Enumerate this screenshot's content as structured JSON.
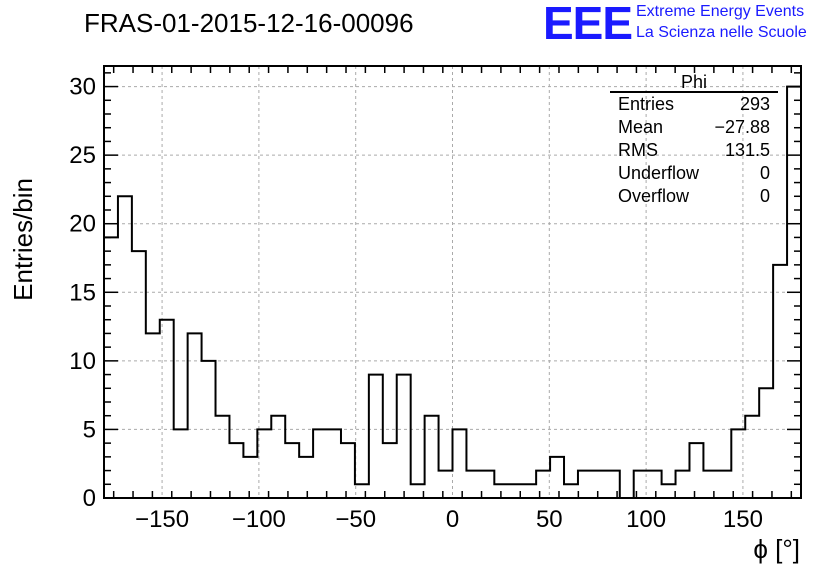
{
  "header": {
    "run_id": "FRAS-01-2015-12-16-00096",
    "logo": "EEE",
    "logo_line1": "Extreme Energy Events",
    "logo_line2": "La Scienza nelle Scuole"
  },
  "stats_box": {
    "title": "Phi",
    "rows": [
      {
        "label": "Entries",
        "value": "293"
      },
      {
        "label": "Mean",
        "value": "−27.88"
      },
      {
        "label": "RMS",
        "value": "131.5"
      },
      {
        "label": "Underflow",
        "value": "0"
      },
      {
        "label": "Overflow",
        "value": "0"
      }
    ]
  },
  "chart_data": {
    "type": "bar",
    "subtype": "histogram",
    "xlabel": "ϕ [°]",
    "ylabel": "Entries/bin",
    "xlim": [
      -180,
      180
    ],
    "ylim": [
      0,
      31.5
    ],
    "x_ticks": [
      -150,
      -100,
      -50,
      0,
      50,
      100,
      150
    ],
    "x_tick_labels": [
      "−150",
      "−100",
      "−50",
      "0",
      "50",
      "100",
      "150"
    ],
    "y_ticks": [
      0,
      5,
      10,
      15,
      20,
      25,
      30
    ],
    "y_tick_labels": [
      "0",
      "5",
      "10",
      "15",
      "20",
      "25",
      "30"
    ],
    "grid": true,
    "bin_width": 7.2,
    "values": [
      19,
      22,
      18,
      12,
      13,
      5,
      12,
      10,
      6,
      4,
      3,
      5,
      6,
      4,
      3,
      5,
      5,
      4,
      1,
      9,
      4,
      9,
      1,
      6,
      2,
      5,
      2,
      2,
      1,
      1,
      1,
      2,
      3,
      1,
      2,
      2,
      2,
      0,
      2,
      2,
      1,
      2,
      4,
      2,
      2,
      5,
      6,
      8,
      17,
      30
    ],
    "line_color": "#000000"
  }
}
